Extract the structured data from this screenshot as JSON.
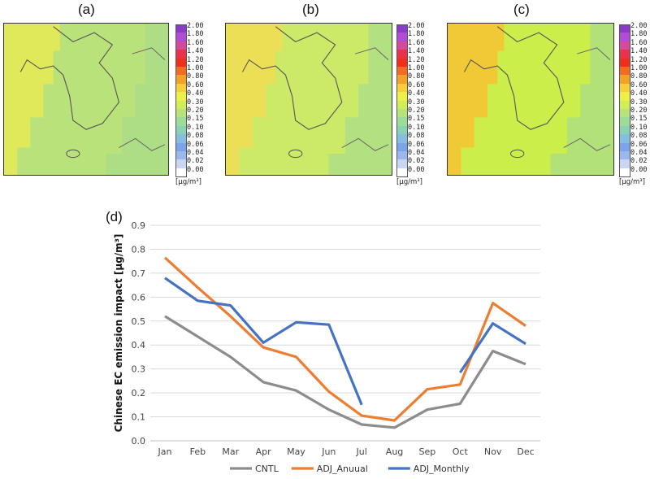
{
  "panels": [
    {
      "label": "(a)",
      "base": "#b9e27a",
      "west": "#e6ea55",
      "legend_unit": "[µg/m³]"
    },
    {
      "label": "(b)",
      "base": "#cde968",
      "west": "#f2dd52",
      "legend_unit": "[µg/m³]"
    },
    {
      "label": "(c)",
      "base": "#ccee4a",
      "west": "#f7c232",
      "legend_unit": "[µg/m³]"
    }
  ],
  "legend": {
    "levels": [
      "2.00",
      "1.80",
      "1.60",
      "1.40",
      "1.20",
      "1.00",
      "0.80",
      "0.60",
      "0.40",
      "0.30",
      "0.20",
      "0.15",
      "0.10",
      "0.08",
      "0.06",
      "0.04",
      "0.02",
      "0.00"
    ],
    "colors": [
      "#8a3cc8",
      "#b24bd6",
      "#d54a9a",
      "#e8334a",
      "#f12e1c",
      "#f36a20",
      "#f5a02a",
      "#f7cf3a",
      "#eef04a",
      "#d1ee58",
      "#b6e47a",
      "#9cdc98",
      "#8ad2b4",
      "#86bde0",
      "#7ca4e8",
      "#9ab8ee",
      "#c8d6f4",
      "#ffffff"
    ]
  },
  "chart_data": {
    "type": "line",
    "panel_label": "(d)",
    "categories": [
      "Jan",
      "Feb",
      "Mar",
      "Apr",
      "May",
      "Jun",
      "Jul",
      "Aug",
      "Sep",
      "Oct",
      "Nov",
      "Dec"
    ],
    "ylabel": "Chinese EC emission impact [µg/m³]",
    "ylim": [
      0,
      0.9
    ],
    "yticks": [
      "0.0",
      "0.1",
      "0.2",
      "0.3",
      "0.4",
      "0.5",
      "0.6",
      "0.7",
      "0.8",
      "0.9"
    ],
    "series": [
      {
        "name": "CNTL",
        "color": "#8c8c8c",
        "values": [
          0.52,
          0.435,
          0.35,
          0.245,
          0.21,
          0.13,
          0.068,
          0.055,
          0.13,
          0.155,
          0.375,
          0.32
        ]
      },
      {
        "name": "ADJ_Anuual",
        "color": "#ed7d31",
        "values": [
          0.765,
          0.64,
          0.52,
          0.39,
          0.35,
          0.205,
          0.105,
          0.085,
          0.215,
          0.235,
          0.575,
          0.48
        ]
      },
      {
        "name": "ADJ_Monthly",
        "color": "#4472c4",
        "values": [
          0.68,
          0.585,
          0.565,
          0.41,
          0.495,
          0.485,
          0.15,
          null,
          null,
          0.285,
          0.49,
          0.405
        ]
      }
    ],
    "legend_position": "bottom"
  }
}
